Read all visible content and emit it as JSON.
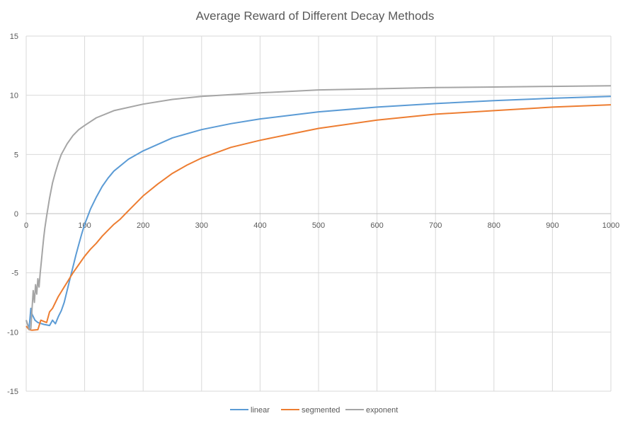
{
  "chart_data": {
    "type": "line",
    "title": "Average Reward of Different Decay Methods",
    "xlabel": "",
    "ylabel": "",
    "xlim": [
      0,
      1000
    ],
    "ylim": [
      -15,
      15
    ],
    "x_ticks": [
      0,
      100,
      200,
      300,
      400,
      500,
      600,
      700,
      800,
      900,
      1000
    ],
    "y_ticks": [
      15,
      10,
      5,
      0,
      -5,
      -10,
      -15
    ],
    "grid": true,
    "legend_position": "bottom",
    "series": [
      {
        "name": "linear",
        "color": "#5B9BD5",
        "points": [
          [
            0,
            -9.0
          ],
          [
            5,
            -9.7
          ],
          [
            8,
            -8.0
          ],
          [
            10,
            -8.5
          ],
          [
            15,
            -9.0
          ],
          [
            20,
            -9.2
          ],
          [
            30,
            -9.35
          ],
          [
            40,
            -9.45
          ],
          [
            45,
            -9.0
          ],
          [
            50,
            -9.3
          ],
          [
            55,
            -8.7
          ],
          [
            60,
            -8.2
          ],
          [
            65,
            -7.5
          ],
          [
            70,
            -6.5
          ],
          [
            75,
            -5.5
          ],
          [
            80,
            -4.5
          ],
          [
            85,
            -3.5
          ],
          [
            90,
            -2.6
          ],
          [
            95,
            -1.7
          ],
          [
            100,
            -0.9
          ],
          [
            110,
            0.4
          ],
          [
            120,
            1.4
          ],
          [
            130,
            2.3
          ],
          [
            140,
            3.0
          ],
          [
            150,
            3.6
          ],
          [
            175,
            4.6
          ],
          [
            200,
            5.3
          ],
          [
            250,
            6.4
          ],
          [
            300,
            7.1
          ],
          [
            350,
            7.6
          ],
          [
            400,
            8.0
          ],
          [
            450,
            8.3
          ],
          [
            500,
            8.6
          ],
          [
            600,
            9.0
          ],
          [
            700,
            9.3
          ],
          [
            800,
            9.55
          ],
          [
            900,
            9.75
          ],
          [
            1000,
            9.9
          ]
        ]
      },
      {
        "name": "segmented",
        "color": "#ED7D31",
        "points": [
          [
            0,
            -9.5
          ],
          [
            5,
            -9.8
          ],
          [
            10,
            -9.85
          ],
          [
            20,
            -9.8
          ],
          [
            25,
            -9.0
          ],
          [
            30,
            -9.1
          ],
          [
            35,
            -9.2
          ],
          [
            40,
            -8.3
          ],
          [
            45,
            -8.0
          ],
          [
            50,
            -7.5
          ],
          [
            55,
            -7.0
          ],
          [
            60,
            -6.6
          ],
          [
            65,
            -6.2
          ],
          [
            70,
            -5.8
          ],
          [
            75,
            -5.4
          ],
          [
            80,
            -5.0
          ],
          [
            90,
            -4.3
          ],
          [
            100,
            -3.6
          ],
          [
            110,
            -3.0
          ],
          [
            120,
            -2.5
          ],
          [
            130,
            -1.9
          ],
          [
            140,
            -1.4
          ],
          [
            150,
            -0.9
          ],
          [
            160,
            -0.5
          ],
          [
            170,
            0.0
          ],
          [
            180,
            0.5
          ],
          [
            190,
            1.0
          ],
          [
            200,
            1.5
          ],
          [
            225,
            2.5
          ],
          [
            250,
            3.4
          ],
          [
            275,
            4.1
          ],
          [
            300,
            4.7
          ],
          [
            350,
            5.6
          ],
          [
            400,
            6.2
          ],
          [
            450,
            6.7
          ],
          [
            500,
            7.2
          ],
          [
            600,
            7.9
          ],
          [
            700,
            8.4
          ],
          [
            800,
            8.7
          ],
          [
            900,
            9.0
          ],
          [
            1000,
            9.2
          ]
        ]
      },
      {
        "name": "exponent",
        "color": "#A5A5A5",
        "points": [
          [
            0,
            -9.0
          ],
          [
            5,
            -9.8
          ],
          [
            8,
            -9.7
          ],
          [
            10,
            -8.0
          ],
          [
            12,
            -6.5
          ],
          [
            14,
            -7.5
          ],
          [
            16,
            -6.0
          ],
          [
            18,
            -6.8
          ],
          [
            20,
            -5.5
          ],
          [
            22,
            -6.2
          ],
          [
            24,
            -5.0
          ],
          [
            26,
            -4.0
          ],
          [
            28,
            -3.0
          ],
          [
            30,
            -2.0
          ],
          [
            32,
            -1.2
          ],
          [
            35,
            -0.2
          ],
          [
            40,
            1.3
          ],
          [
            45,
            2.6
          ],
          [
            50,
            3.5
          ],
          [
            55,
            4.3
          ],
          [
            60,
            5.0
          ],
          [
            70,
            5.9
          ],
          [
            80,
            6.6
          ],
          [
            90,
            7.1
          ],
          [
            100,
            7.45
          ],
          [
            120,
            8.1
          ],
          [
            150,
            8.7
          ],
          [
            200,
            9.25
          ],
          [
            250,
            9.65
          ],
          [
            300,
            9.9
          ],
          [
            400,
            10.2
          ],
          [
            500,
            10.45
          ],
          [
            600,
            10.55
          ],
          [
            700,
            10.65
          ],
          [
            800,
            10.7
          ],
          [
            900,
            10.75
          ],
          [
            1000,
            10.8
          ]
        ]
      }
    ]
  }
}
